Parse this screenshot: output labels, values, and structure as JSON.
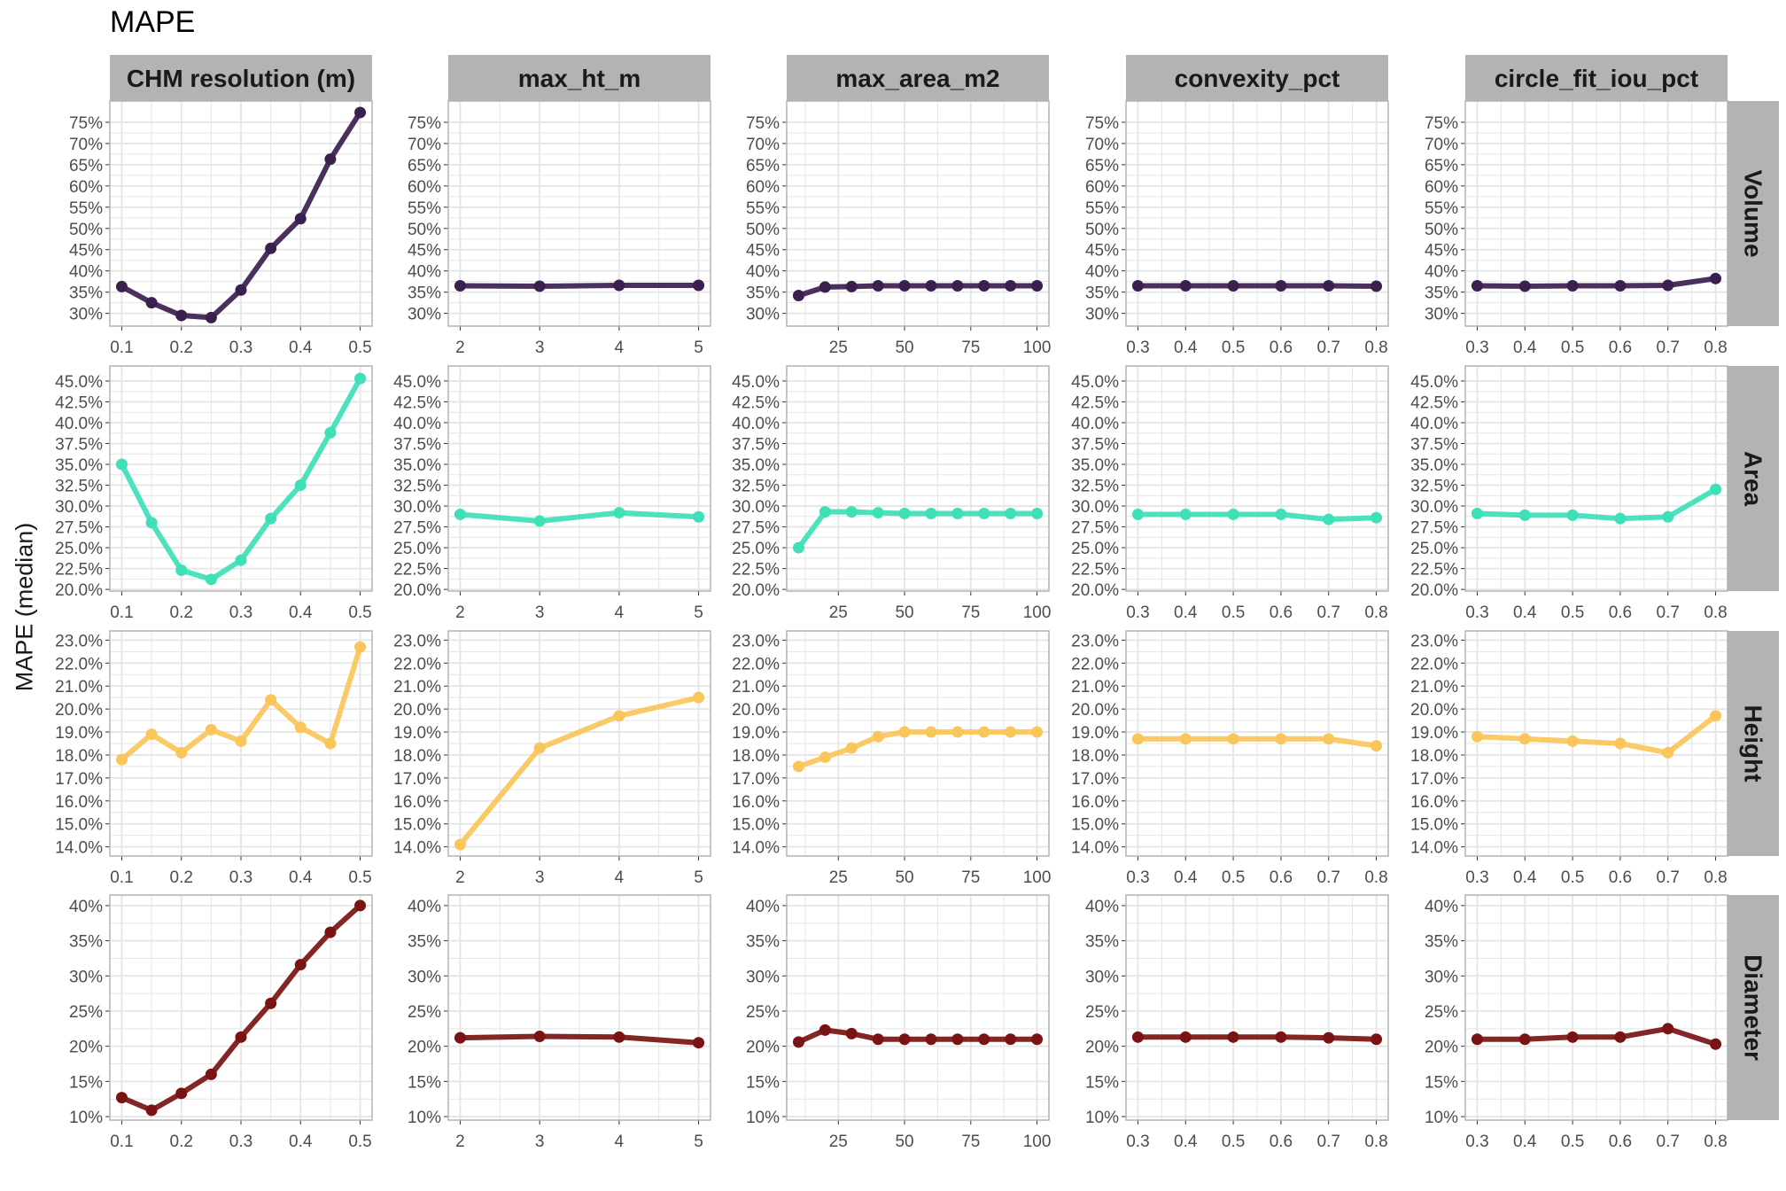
{
  "title": "MAPE",
  "ylabel": "MAPE (median)",
  "colors": {
    "Volume": "#3b1f4f",
    "Area": "#3ee0b8",
    "Height": "#fac55a",
    "Diameter": "#7a1414",
    "strip_bg": "#b3b3b3",
    "grid": "#e5e5e5",
    "panel_border": "#b3b3b3"
  },
  "columns": [
    {
      "label": "CHM resolution (m)",
      "ticks": [
        {
          "v": 0.1,
          "t": "0.1"
        },
        {
          "v": 0.2,
          "t": "0.2"
        },
        {
          "v": 0.3,
          "t": "0.3"
        },
        {
          "v": 0.4,
          "t": "0.4"
        },
        {
          "v": 0.5,
          "t": "0.5"
        }
      ],
      "xlim": [
        0.08,
        0.52
      ],
      "xminor": [
        0.15,
        0.25,
        0.35,
        0.45
      ]
    },
    {
      "label": "max_ht_m",
      "ticks": [
        {
          "v": 2,
          "t": "2"
        },
        {
          "v": 3,
          "t": "3"
        },
        {
          "v": 4,
          "t": "4"
        },
        {
          "v": 5,
          "t": "5"
        }
      ],
      "xlim": [
        1.85,
        5.15
      ],
      "xminor": [
        2.5,
        3.5,
        4.5
      ]
    },
    {
      "label": "max_area_m2",
      "ticks": [
        {
          "v": 25,
          "t": "25"
        },
        {
          "v": 50,
          "t": "50"
        },
        {
          "v": 75,
          "t": "75"
        },
        {
          "v": 100,
          "t": "100"
        }
      ],
      "xlim": [
        5.5,
        104.5
      ],
      "xminor": [
        12.5,
        37.5,
        62.5,
        87.5
      ]
    },
    {
      "label": "convexity_pct",
      "ticks": [
        {
          "v": 0.3,
          "t": "0.3"
        },
        {
          "v": 0.4,
          "t": "0.4"
        },
        {
          "v": 0.5,
          "t": "0.5"
        },
        {
          "v": 0.6,
          "t": "0.6"
        },
        {
          "v": 0.7,
          "t": "0.7"
        },
        {
          "v": 0.8,
          "t": "0.8"
        }
      ],
      "xlim": [
        0.275,
        0.825
      ],
      "xminor": [
        0.35,
        0.45,
        0.55,
        0.65,
        0.75
      ]
    },
    {
      "label": "circle_fit_iou_pct",
      "ticks": [
        {
          "v": 0.3,
          "t": "0.3"
        },
        {
          "v": 0.4,
          "t": "0.4"
        },
        {
          "v": 0.5,
          "t": "0.5"
        },
        {
          "v": 0.6,
          "t": "0.6"
        },
        {
          "v": 0.7,
          "t": "0.7"
        },
        {
          "v": 0.8,
          "t": "0.8"
        }
      ],
      "xlim": [
        0.275,
        0.825
      ],
      "xminor": [
        0.35,
        0.45,
        0.55,
        0.65,
        0.75
      ]
    }
  ],
  "rows": [
    {
      "label": "Volume",
      "ylim": [
        27,
        80
      ],
      "ticks": [
        {
          "v": 30,
          "t": "30%"
        },
        {
          "v": 35,
          "t": "35%"
        },
        {
          "v": 40,
          "t": "40%"
        },
        {
          "v": 45,
          "t": "45%"
        },
        {
          "v": 50,
          "t": "50%"
        },
        {
          "v": 55,
          "t": "55%"
        },
        {
          "v": 60,
          "t": "60%"
        },
        {
          "v": 65,
          "t": "65%"
        },
        {
          "v": 70,
          "t": "70%"
        },
        {
          "v": 75,
          "t": "75%"
        }
      ]
    },
    {
      "label": "Area",
      "ylim": [
        19.8,
        46.8
      ],
      "ticks": [
        {
          "v": 20,
          "t": "20.0%"
        },
        {
          "v": 22.5,
          "t": "22.5%"
        },
        {
          "v": 25,
          "t": "25.0%"
        },
        {
          "v": 27.5,
          "t": "27.5%"
        },
        {
          "v": 30,
          "t": "30.0%"
        },
        {
          "v": 32.5,
          "t": "32.5%"
        },
        {
          "v": 35,
          "t": "35.0%"
        },
        {
          "v": 37.5,
          "t": "37.5%"
        },
        {
          "v": 40,
          "t": "40.0%"
        },
        {
          "v": 42.5,
          "t": "42.5%"
        },
        {
          "v": 45,
          "t": "45.0%"
        }
      ]
    },
    {
      "label": "Height",
      "ylim": [
        13.6,
        23.4
      ],
      "ticks": [
        {
          "v": 14,
          "t": "14.0%"
        },
        {
          "v": 15,
          "t": "15.0%"
        },
        {
          "v": 16,
          "t": "16.0%"
        },
        {
          "v": 17,
          "t": "17.0%"
        },
        {
          "v": 18,
          "t": "18.0%"
        },
        {
          "v": 19,
          "t": "19.0%"
        },
        {
          "v": 20,
          "t": "20.0%"
        },
        {
          "v": 21,
          "t": "21.0%"
        },
        {
          "v": 22,
          "t": "22.0%"
        },
        {
          "v": 23,
          "t": "23.0%"
        }
      ]
    },
    {
      "label": "Diameter",
      "ylim": [
        9.5,
        41.5
      ],
      "ticks": [
        {
          "v": 10,
          "t": "10%"
        },
        {
          "v": 15,
          "t": "15%"
        },
        {
          "v": 20,
          "t": "20%"
        },
        {
          "v": 25,
          "t": "25%"
        },
        {
          "v": 30,
          "t": "30%"
        },
        {
          "v": 35,
          "t": "35%"
        },
        {
          "v": 40,
          "t": "40%"
        }
      ]
    }
  ],
  "chart_data": {
    "type": "line",
    "title": "MAPE",
    "ylabel": "MAPE (median)",
    "facet_cols": [
      "CHM resolution (m)",
      "max_ht_m",
      "max_area_m2",
      "convexity_pct",
      "circle_fit_iou_pct"
    ],
    "facet_rows": [
      "Volume",
      "Area",
      "Height",
      "Diameter"
    ],
    "panels": [
      {
        "row": "Volume",
        "col": "CHM resolution (m)",
        "x": [
          0.1,
          0.15,
          0.2,
          0.25,
          0.3,
          0.35,
          0.4,
          0.45,
          0.5
        ],
        "y": [
          36.3,
          32.5,
          29.5,
          29.0,
          35.5,
          45.3,
          52.3,
          66.3,
          77.3
        ]
      },
      {
        "row": "Volume",
        "col": "max_ht_m",
        "x": [
          2,
          3,
          4,
          5
        ],
        "y": [
          36.5,
          36.4,
          36.6,
          36.6
        ]
      },
      {
        "row": "Volume",
        "col": "max_area_m2",
        "x": [
          10,
          20,
          30,
          40,
          50,
          60,
          70,
          80,
          90,
          100
        ],
        "y": [
          34.2,
          36.2,
          36.3,
          36.5,
          36.5,
          36.5,
          36.5,
          36.5,
          36.5,
          36.5
        ]
      },
      {
        "row": "Volume",
        "col": "convexity_pct",
        "x": [
          0.3,
          0.4,
          0.5,
          0.6,
          0.7,
          0.8
        ],
        "y": [
          36.5,
          36.5,
          36.5,
          36.5,
          36.5,
          36.4
        ]
      },
      {
        "row": "Volume",
        "col": "circle_fit_iou_pct",
        "x": [
          0.3,
          0.4,
          0.5,
          0.6,
          0.7,
          0.8
        ],
        "y": [
          36.5,
          36.4,
          36.5,
          36.5,
          36.6,
          38.2
        ]
      },
      {
        "row": "Area",
        "col": "CHM resolution (m)",
        "x": [
          0.1,
          0.15,
          0.2,
          0.25,
          0.3,
          0.35,
          0.4,
          0.45,
          0.5
        ],
        "y": [
          35.0,
          28.0,
          22.3,
          21.2,
          23.5,
          28.5,
          32.5,
          38.8,
          45.3
        ]
      },
      {
        "row": "Area",
        "col": "max_ht_m",
        "x": [
          2,
          3,
          4,
          5
        ],
        "y": [
          29.0,
          28.2,
          29.2,
          28.7
        ]
      },
      {
        "row": "Area",
        "col": "max_area_m2",
        "x": [
          10,
          20,
          30,
          40,
          50,
          60,
          70,
          80,
          90,
          100
        ],
        "y": [
          25.0,
          29.3,
          29.3,
          29.2,
          29.1,
          29.1,
          29.1,
          29.1,
          29.1,
          29.1
        ]
      },
      {
        "row": "Area",
        "col": "convexity_pct",
        "x": [
          0.3,
          0.4,
          0.5,
          0.6,
          0.7,
          0.8
        ],
        "y": [
          29.0,
          29.0,
          29.0,
          29.0,
          28.4,
          28.6
        ]
      },
      {
        "row": "Area",
        "col": "circle_fit_iou_pct",
        "x": [
          0.3,
          0.4,
          0.5,
          0.6,
          0.7,
          0.8
        ],
        "y": [
          29.1,
          28.9,
          28.9,
          28.5,
          28.7,
          32.0
        ]
      },
      {
        "row": "Height",
        "col": "CHM resolution (m)",
        "x": [
          0.1,
          0.15,
          0.2,
          0.25,
          0.3,
          0.35,
          0.4,
          0.45,
          0.5
        ],
        "y": [
          17.8,
          18.9,
          18.1,
          19.1,
          18.6,
          20.4,
          19.2,
          18.5,
          22.7
        ]
      },
      {
        "row": "Height",
        "col": "max_ht_m",
        "x": [
          2,
          3,
          4,
          5
        ],
        "y": [
          14.1,
          18.3,
          19.7,
          20.5
        ]
      },
      {
        "row": "Height",
        "col": "max_area_m2",
        "x": [
          10,
          20,
          30,
          40,
          50,
          60,
          70,
          80,
          90,
          100
        ],
        "y": [
          17.5,
          17.9,
          18.3,
          18.8,
          19.0,
          19.0,
          19.0,
          19.0,
          19.0,
          19.0
        ]
      },
      {
        "row": "Height",
        "col": "convexity_pct",
        "x": [
          0.3,
          0.4,
          0.5,
          0.6,
          0.7,
          0.8
        ],
        "y": [
          18.7,
          18.7,
          18.7,
          18.7,
          18.7,
          18.4
        ]
      },
      {
        "row": "Height",
        "col": "circle_fit_iou_pct",
        "x": [
          0.3,
          0.4,
          0.5,
          0.6,
          0.7,
          0.8
        ],
        "y": [
          18.8,
          18.7,
          18.6,
          18.5,
          18.1,
          19.7
        ]
      },
      {
        "row": "Diameter",
        "col": "CHM resolution (m)",
        "x": [
          0.1,
          0.15,
          0.2,
          0.25,
          0.3,
          0.35,
          0.4,
          0.45,
          0.5
        ],
        "y": [
          12.7,
          10.9,
          13.3,
          16.0,
          21.3,
          26.1,
          31.6,
          36.2,
          40.0
        ]
      },
      {
        "row": "Diameter",
        "col": "max_ht_m",
        "x": [
          2,
          3,
          4,
          5
        ],
        "y": [
          21.2,
          21.4,
          21.3,
          20.5
        ]
      },
      {
        "row": "Diameter",
        "col": "max_area_m2",
        "x": [
          10,
          20,
          30,
          40,
          50,
          60,
          70,
          80,
          90,
          100
        ],
        "y": [
          20.6,
          22.3,
          21.8,
          21.0,
          21.0,
          21.0,
          21.0,
          21.0,
          21.0,
          21.0
        ]
      },
      {
        "row": "Diameter",
        "col": "convexity_pct",
        "x": [
          0.3,
          0.4,
          0.5,
          0.6,
          0.7,
          0.8
        ],
        "y": [
          21.3,
          21.3,
          21.3,
          21.3,
          21.2,
          21.0
        ]
      },
      {
        "row": "Diameter",
        "col": "circle_fit_iou_pct",
        "x": [
          0.3,
          0.4,
          0.5,
          0.6,
          0.7,
          0.8
        ],
        "y": [
          21.0,
          21.0,
          21.3,
          21.3,
          22.5,
          20.3
        ]
      }
    ]
  }
}
